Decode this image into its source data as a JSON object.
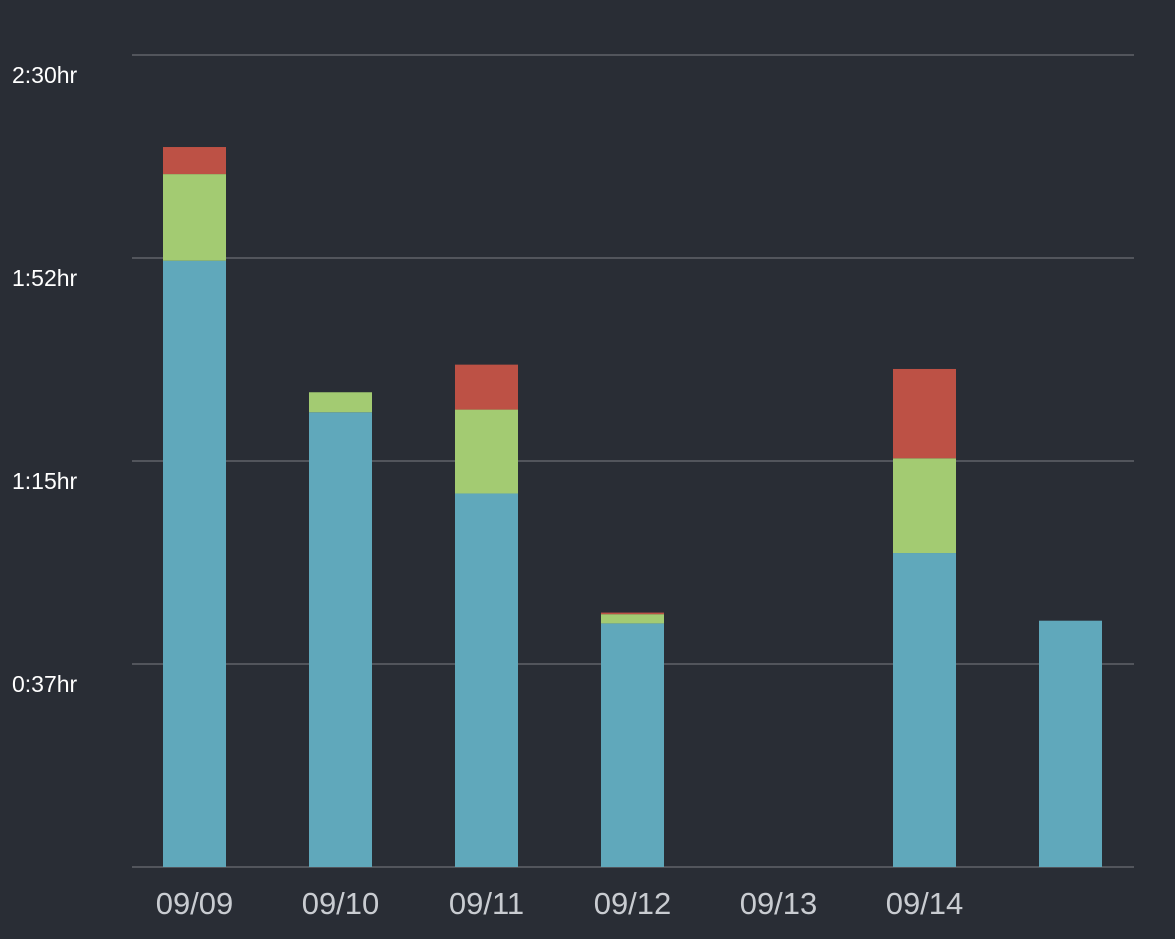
{
  "chart_data": {
    "type": "bar",
    "stacked": true,
    "title": "",
    "xlabel": "",
    "ylabel": "",
    "categories": [
      "09/09",
      "09/10",
      "09/11",
      "09/12",
      "09/13",
      "09/14",
      ""
    ],
    "ytick_labels": [
      "0:37hr",
      "1:15hr",
      "1:52hr",
      "2:30hr"
    ],
    "ytick_values": [
      37.5,
      75,
      112.5,
      150
    ],
    "ylim": [
      0,
      150
    ],
    "grid": true,
    "legend": "none",
    "series": [
      {
        "color": "#60a8bb",
        "values": [
          112,
          84,
          69,
          45,
          0,
          58,
          45.5
        ]
      },
      {
        "color": "#a3cb72",
        "values": [
          16,
          3.7,
          15.5,
          1.7,
          0,
          17.5,
          0
        ]
      },
      {
        "color": "#bd5145",
        "values": [
          5,
          0,
          8.3,
          0.3,
          0,
          16.5,
          0
        ]
      }
    ]
  }
}
